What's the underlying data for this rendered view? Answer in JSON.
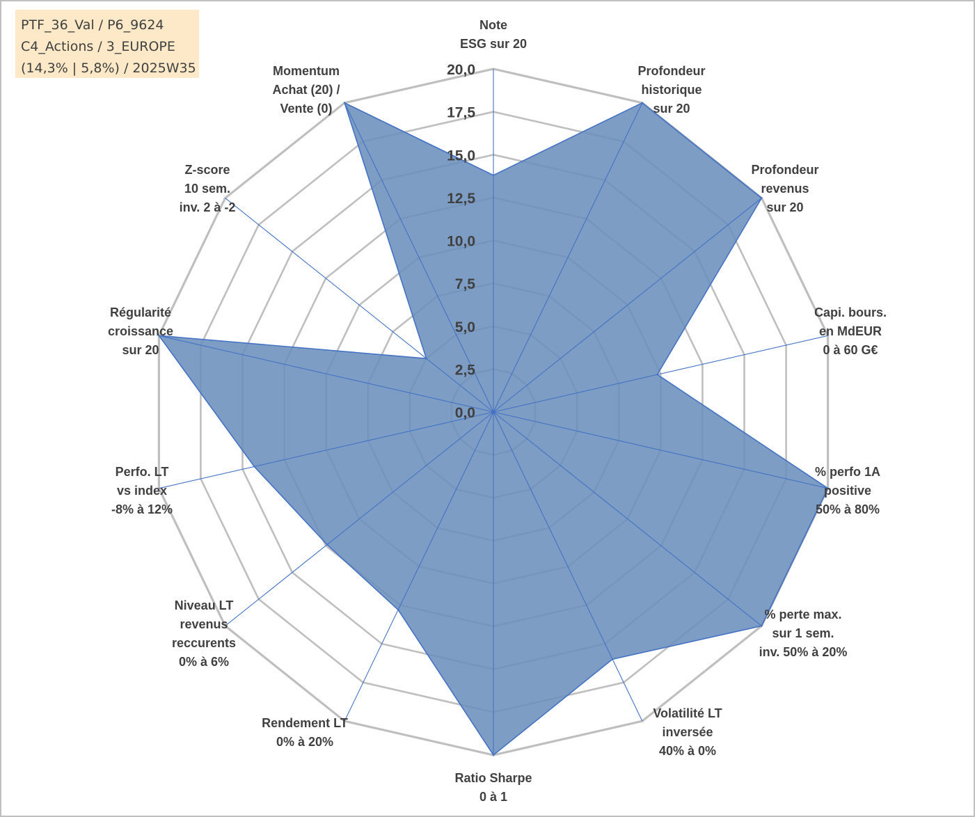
{
  "header": {
    "line1": "PTF_36_Val / P6_9624",
    "line2": "C4_Actions / 3_EUROPE",
    "line3": "(14,3% | 5,8%) / 2025W35"
  },
  "chart_data": {
    "type": "radar",
    "categories": [
      [
        "Note",
        "ESG sur 20"
      ],
      [
        "Profondeur",
        "historique",
        "sur 20"
      ],
      [
        "Profondeur",
        "revenus",
        "sur 20"
      ],
      [
        "Capi. bours.",
        "en MdEUR",
        "0 à 60 G€"
      ],
      [
        "% perfo 1A",
        "positive",
        "50% à 80%"
      ],
      [
        "% perte max.",
        "sur 1 sem.",
        "inv. 50% à 20%"
      ],
      [
        "Volatilité LT",
        "inversée",
        "40% à 0%"
      ],
      [
        "Ratio Sharpe",
        "0 à 1"
      ],
      [
        "Rendement LT",
        "0% à 20%"
      ],
      [
        "Niveau LT",
        "revenus",
        "reccurents",
        "0% à 6%"
      ],
      [
        "Perfo. LT",
        "vs index",
        "-8% à 12%"
      ],
      [
        "Régularité",
        "croissance",
        "sur 20"
      ],
      [
        "Z-score",
        "10 sem.",
        "inv. 2 à -2"
      ],
      [
        "Momentum",
        "Achat (20) /",
        "Vente (0)"
      ]
    ],
    "values": [
      13.8,
      20,
      20,
      9.8,
      20,
      20,
      16.0,
      20,
      12.8,
      12.4,
      14.3,
      20,
      5.0,
      20
    ],
    "ticks": [
      "0,0",
      "2,5",
      "5,0",
      "7,5",
      "10,0",
      "12,5",
      "15,0",
      "17,5",
      "20,0"
    ],
    "rlim": [
      0,
      20
    ],
    "grid": true,
    "legend": "none",
    "colors": {
      "fill": "#6b90bd",
      "line": "#4472c4",
      "grid": "#bfbfbf",
      "text": "#404040"
    }
  }
}
